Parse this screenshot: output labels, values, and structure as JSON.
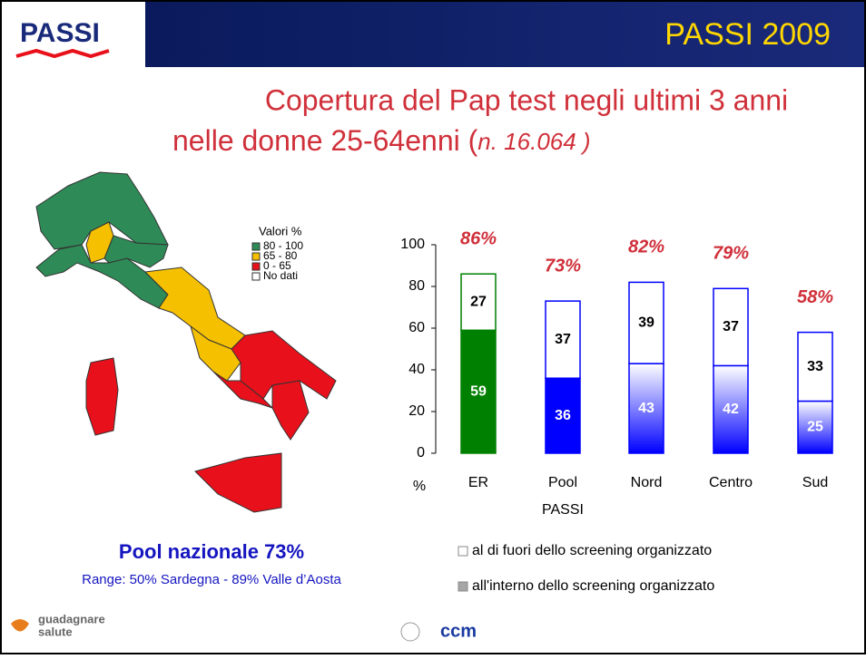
{
  "header": {
    "logo": "PASSI",
    "label": "PASSI 2009"
  },
  "map_legend": {
    "title": "Valori %",
    "items": [
      {
        "label": "80 - 100",
        "color": "#2e8b57"
      },
      {
        "label": "65 - 80",
        "color": "#f5c000"
      },
      {
        "label": "0 - 65",
        "color": "#e8101a"
      },
      {
        "label": "No dati",
        "color": "#ffffff"
      }
    ]
  },
  "summary": {
    "headline": "Pool nazionale  73%",
    "range": "Range: 50% Sardegna - 89% Valle d’Aosta"
  },
  "footer": {
    "left_logo": "guadagnare",
    "left_logo_2": "salute",
    "center_logo": "ccm"
  },
  "chart_data": {
    "type": "stacked_bar",
    "title": [
      "Copertura del Pap test negli ultimi 3 anni",
      "nelle donne 25-64enni  ("
    ],
    "title_italic": "n. 16.064 )",
    "categories": [
      [
        "ER"
      ],
      [
        "Pool",
        "PASSI"
      ],
      [
        "Nord"
      ],
      [
        "Centro"
      ],
      [
        "Sud"
      ]
    ],
    "bar_colors": [
      "#008000",
      "#0000ff",
      "#0000ff",
      "#0000ff",
      "#0000ff"
    ],
    "bar_fill": [
      "solid",
      "solid",
      "gradient",
      "gradient",
      "gradient"
    ],
    "series": [
      {
        "name": "all'interno dello screening organizzato",
        "legend_color": "#a6a6a6",
        "values": [
          59,
          36,
          43,
          42,
          25
        ]
      },
      {
        "name": "al di fuori dello screening organizzato",
        "legend_color": "#ffffff",
        "values": [
          27,
          37,
          39,
          37,
          33
        ]
      }
    ],
    "totals": {
      "values": [
        86,
        73,
        82,
        79,
        58
      ],
      "value_labels": [
        "86%",
        "73%",
        "82%",
        "79%",
        "58%"
      ],
      "color": "#d0303a"
    },
    "y_label": "%",
    "ylim": [
      0,
      100
    ],
    "yticks": [
      0,
      20,
      40,
      60,
      80,
      100
    ],
    "grid": false
  }
}
